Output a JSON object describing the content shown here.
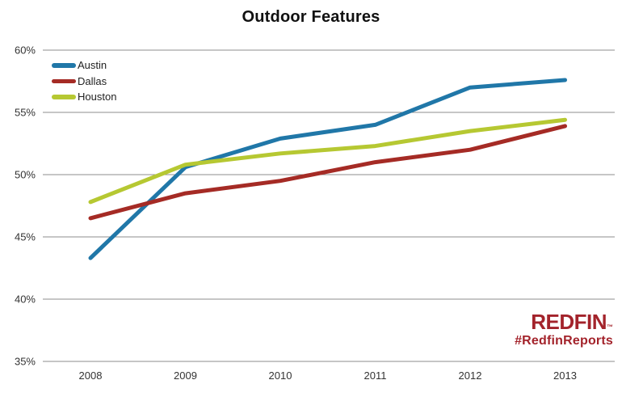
{
  "title": "Outdoor Features",
  "legend": {
    "items": [
      {
        "label": "Austin"
      },
      {
        "label": "Dallas"
      },
      {
        "label": "Houston"
      }
    ]
  },
  "branding": {
    "logo": "REDFIN",
    "trademark": "™",
    "hashtag": "#RedfinReports",
    "color": "#A3232B"
  },
  "colors": {
    "austin": "#2077A8",
    "dallas": "#A52B25",
    "houston": "#B6C832",
    "gridline": "#8E8E8E",
    "tick_text": "#333333"
  },
  "chart_data": {
    "type": "line",
    "title": "Outdoor Features",
    "x": [
      2008,
      2009,
      2010,
      2011,
      2012,
      2013
    ],
    "series": [
      {
        "name": "Austin",
        "color": "#2077A8",
        "values": [
          43.3,
          50.6,
          52.9,
          54.0,
          57.0,
          57.6
        ]
      },
      {
        "name": "Dallas",
        "color": "#A52B25",
        "values": [
          46.5,
          48.5,
          49.5,
          51.0,
          52.0,
          53.9
        ]
      },
      {
        "name": "Houston",
        "color": "#B6C832",
        "values": [
          47.8,
          50.8,
          51.7,
          52.3,
          53.5,
          54.4
        ]
      }
    ],
    "xlabel": "",
    "ylabel": "",
    "ylim": [
      35,
      60
    ],
    "yticks": [
      35,
      40,
      45,
      50,
      55,
      60
    ],
    "ytick_suffix": "%",
    "grid": "horizontal-only",
    "legend_position": "top-left",
    "units": "percent of listings"
  }
}
